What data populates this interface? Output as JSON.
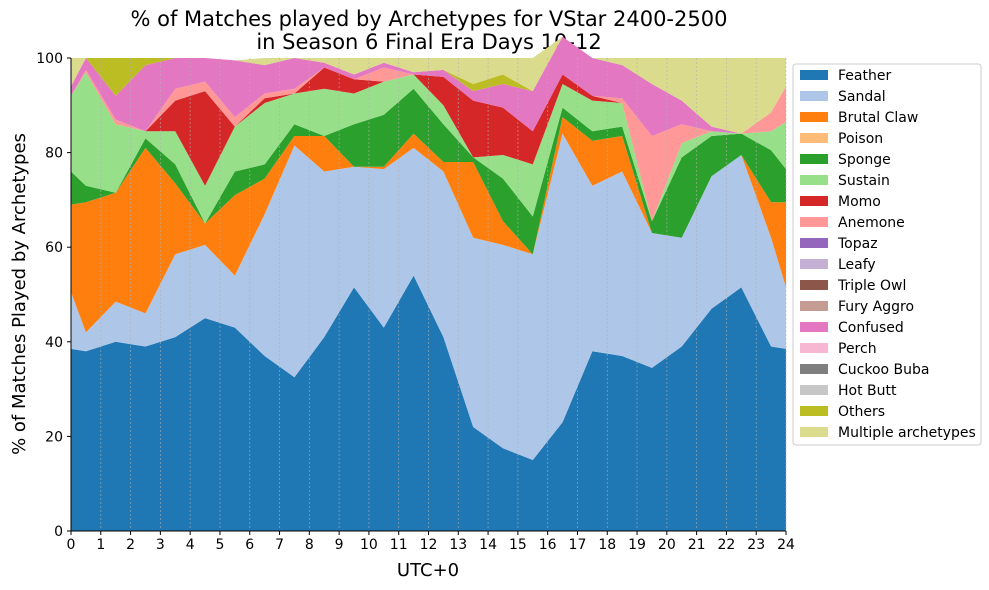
{
  "chart_data": {
    "type": "area",
    "stacked": true,
    "title_line1": "% of Matches played by Archetypes for VStar 2400-2500",
    "title_line2": "in Season 6 Final Era Days 10-12",
    "xlabel": "UTC+0",
    "ylabel": "% of Matches Played by Archetypes",
    "xlim": [
      0,
      24
    ],
    "ylim": [
      0,
      100
    ],
    "x_ticks": [
      "0",
      "1",
      "2",
      "3",
      "4",
      "5",
      "6",
      "7",
      "8",
      "9",
      "10",
      "11",
      "12",
      "13",
      "14",
      "15",
      "16",
      "17",
      "18",
      "19",
      "20",
      "21",
      "22",
      "23",
      "24"
    ],
    "y_ticks": [
      "0",
      "20",
      "40",
      "60",
      "80",
      "100"
    ],
    "grid": "vertical dashed",
    "legend_position": "outside-right",
    "x": [
      0,
      0.5,
      1.5,
      2.5,
      3.5,
      4.5,
      5.5,
      6.5,
      7.5,
      8.5,
      9.5,
      10.5,
      11.5,
      12.5,
      13.5,
      14.5,
      15.5,
      16.5,
      17.5,
      18.5,
      19.5,
      20.5,
      21.5,
      22.5,
      23.5,
      24
    ],
    "series": [
      {
        "name": "Feather",
        "color": "#1f77b4",
        "values": [
          38.5,
          38,
          40,
          39,
          41,
          45,
          43,
          37,
          32.5,
          41,
          51.5,
          43,
          54,
          41,
          22,
          17.5,
          15,
          23,
          38,
          37,
          34.5,
          39,
          47,
          51.5,
          39,
          38.5
        ]
      },
      {
        "name": "Sandal",
        "color": "#aec7e8",
        "values": [
          12,
          4,
          8.5,
          7,
          17.5,
          15.5,
          11,
          30,
          49,
          35,
          25.5,
          33.5,
          27,
          35,
          40,
          43,
          43.5,
          61,
          35,
          39,
          28.5,
          23,
          28,
          28,
          23,
          13
        ]
      },
      {
        "name": "Brutal Claw",
        "color": "#ff7f0e",
        "values": [
          18.5,
          27.5,
          23,
          35,
          15,
          4.5,
          17,
          7.5,
          2,
          7.5,
          0,
          0.5,
          3,
          2,
          16,
          5,
          0,
          3.5,
          9.5,
          7.5,
          0,
          0,
          0,
          0,
          7.5,
          18
        ]
      },
      {
        "name": "Poison",
        "color": "#ffbb78",
        "values": [
          0,
          0,
          0,
          0,
          0,
          0,
          0,
          0,
          0,
          0,
          0,
          0,
          0,
          0,
          0,
          0,
          0,
          0,
          0,
          0,
          0,
          0,
          0,
          0,
          0,
          0
        ]
      },
      {
        "name": "Sponge",
        "color": "#2ca02c",
        "values": [
          7,
          3.5,
          0,
          2,
          4,
          0,
          5,
          3,
          2.5,
          0,
          9,
          11,
          9.5,
          8,
          1,
          9,
          8,
          2,
          2,
          2,
          2.5,
          17,
          8.5,
          4.5,
          11,
          7
        ]
      },
      {
        "name": "Sustain",
        "color": "#98df8a",
        "values": [
          16,
          24,
          14.5,
          1.5,
          7,
          8,
          9.5,
          13,
          6.5,
          10,
          6.5,
          7,
          3,
          4,
          0,
          5,
          11,
          5,
          6.5,
          5,
          0,
          3,
          1,
          0,
          4,
          10
        ]
      },
      {
        "name": "Momo",
        "color": "#d62728",
        "values": [
          0,
          0,
          0,
          0,
          6.5,
          20,
          0,
          1,
          0,
          4.5,
          3,
          0,
          0,
          6,
          12,
          10,
          7,
          2,
          1,
          0,
          0,
          0,
          0,
          0,
          0,
          0
        ]
      },
      {
        "name": "Anemone",
        "color": "#ff9896",
        "values": [
          0,
          0.5,
          1,
          0,
          2.5,
          2,
          2,
          1,
          1,
          0,
          0,
          3,
          0,
          0,
          0,
          0,
          0,
          0,
          0,
          1,
          18,
          4,
          0,
          0,
          4,
          7.5
        ]
      },
      {
        "name": "Topaz",
        "color": "#9467bd",
        "values": [
          0,
          0,
          0,
          0,
          0,
          0,
          0,
          0,
          0,
          0,
          0,
          0,
          0,
          0,
          0,
          0,
          0,
          0,
          0,
          0,
          0,
          0,
          0,
          0,
          0,
          0
        ]
      },
      {
        "name": "Leafy",
        "color": "#c5b0d5",
        "values": [
          0,
          0,
          0,
          0,
          0,
          0,
          0,
          0,
          0,
          0,
          0,
          0,
          0,
          0,
          0,
          0,
          0,
          0,
          0,
          0,
          0,
          0,
          0,
          0,
          0,
          0
        ]
      },
      {
        "name": "Triple Owl",
        "color": "#8c564b",
        "values": [
          0,
          0,
          0,
          0,
          0,
          0,
          0,
          0,
          0,
          0,
          0,
          0,
          0,
          0,
          0,
          0,
          0,
          0,
          0,
          0,
          0,
          0,
          0,
          0,
          0,
          0
        ]
      },
      {
        "name": "Fury Aggro",
        "color": "#c49c94",
        "values": [
          0,
          0,
          0,
          0,
          0,
          0,
          0,
          0,
          0,
          0,
          0,
          0,
          0,
          0,
          0,
          0,
          0,
          0,
          0,
          0,
          0,
          0,
          0,
          0,
          0,
          0
        ]
      },
      {
        "name": "Confused",
        "color": "#e377c2",
        "values": [
          2,
          2.5,
          5,
          14,
          6.5,
          5,
          12,
          6,
          6.5,
          1,
          1,
          1,
          0.5,
          1.5,
          2,
          5,
          8.5,
          8,
          8,
          7,
          11,
          5,
          1,
          0,
          0,
          0
        ]
      },
      {
        "name": "Perch",
        "color": "#f7b6d2",
        "values": [
          0,
          0,
          0,
          0,
          0,
          0,
          0,
          0,
          0,
          0,
          0,
          0,
          0,
          0,
          0,
          0,
          0,
          0,
          0,
          0,
          0,
          0,
          0,
          0,
          0,
          0
        ]
      },
      {
        "name": "Cuckoo Buba",
        "color": "#7f7f7f",
        "values": [
          0,
          0,
          0,
          0,
          0,
          0,
          0,
          0,
          0,
          0,
          0,
          0,
          0,
          0,
          0,
          0,
          0,
          0,
          0,
          0,
          0,
          0,
          0,
          0,
          0,
          0
        ]
      },
      {
        "name": "Hot Butt",
        "color": "#c7c7c7",
        "values": [
          0,
          0,
          0,
          0,
          0,
          0,
          0,
          0,
          0,
          0,
          0,
          0,
          0,
          0,
          0,
          0,
          0,
          0,
          0,
          0,
          0,
          0,
          0,
          0,
          0,
          0
        ]
      },
      {
        "name": "Others",
        "color": "#bcbd22",
        "values": [
          0,
          0,
          8,
          1.5,
          0,
          0,
          0,
          0,
          0,
          0,
          0,
          0,
          0,
          0,
          1.5,
          2,
          0,
          0,
          0,
          0,
          0,
          0,
          0,
          0,
          0,
          0
        ]
      },
      {
        "name": "Multiple archetypes",
        "color": "#dbdb8d",
        "values": [
          6,
          0,
          0,
          0,
          0,
          0,
          0,
          1.5,
          0,
          1,
          3.5,
          1,
          3,
          2.5,
          5.5,
          3.5,
          7,
          0,
          0,
          1.5,
          5.5,
          9,
          14.5,
          16,
          11.5,
          6
        ]
      }
    ]
  }
}
